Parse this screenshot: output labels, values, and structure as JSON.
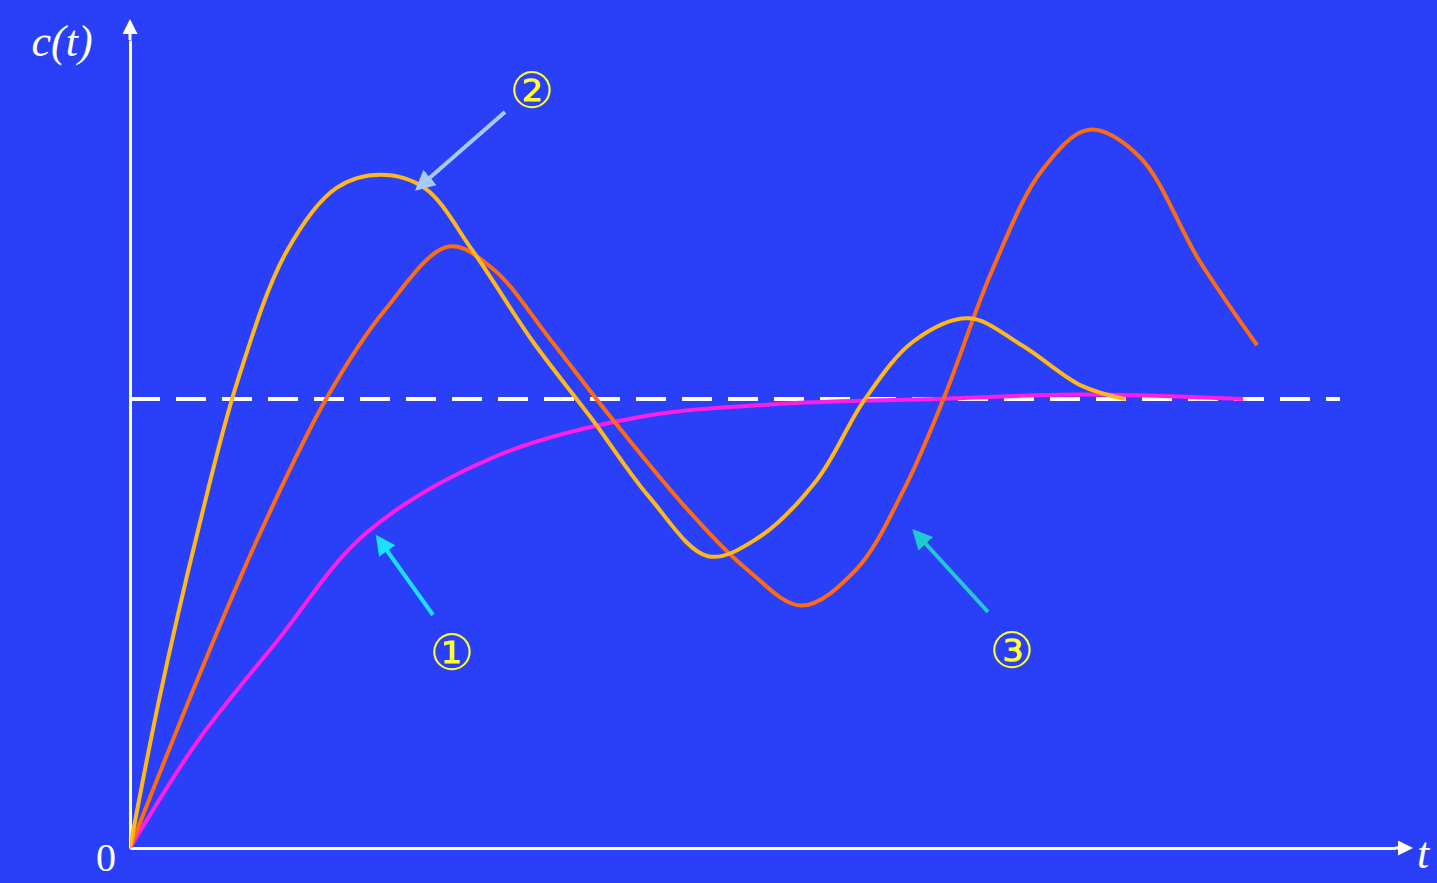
{
  "chart_data": {
    "type": "line",
    "x_label": "t",
    "y_label": "c(t)",
    "xlim": [
      0,
      10
    ],
    "ylim": [
      0,
      1.8
    ],
    "yticks": [
      0
    ],
    "tick_labels": "y",
    "grid": false,
    "reference_line": {
      "value": 1,
      "line_style": "dashed",
      "color": "#ffffff"
    },
    "series": [
      {
        "name": "①",
        "color": "#ff1ee6",
        "x": [
          0,
          0.54,
          1.16,
          1.86,
          2.87,
          4.03,
          5.19,
          6.36,
          7.52,
          8.8
        ],
        "values": [
          0,
          0.24,
          0.46,
          0.7,
          0.87,
          0.96,
          0.99,
          1.0,
          1.01,
          1.0
        ]
      },
      {
        "name": "②",
        "color": "#ffb81c",
        "x": [
          0,
          0.23,
          0.54,
          0.85,
          1.24,
          1.63,
          1.98,
          2.33,
          2.71,
          3.18,
          3.64,
          4.11,
          4.57,
          4.96,
          5.43,
          5.81,
          6.2,
          6.63,
          7.05,
          7.52,
          7.87
        ],
        "values": [
          0,
          0.33,
          0.71,
          1.04,
          1.33,
          1.47,
          1.5,
          1.47,
          1.33,
          1.13,
          0.96,
          0.78,
          0.65,
          0.69,
          0.82,
          1.0,
          1.13,
          1.18,
          1.12,
          1.03,
          1.0
        ]
      },
      {
        "name": "③",
        "color": "#ff6a13",
        "x": [
          0,
          0.54,
          1.01,
          1.55,
          2.02,
          2.52,
          2.87,
          3.33,
          3.8,
          4.42,
          4.88,
          5.31,
          5.74,
          6.12,
          6.43,
          6.82,
          7.21,
          7.58,
          7.98,
          8.45,
          8.91
        ],
        "values": [
          0,
          0.38,
          0.69,
          1.0,
          1.2,
          1.34,
          1.29,
          1.13,
          0.96,
          0.75,
          0.62,
          0.54,
          0.62,
          0.8,
          1.0,
          1.29,
          1.51,
          1.6,
          1.54,
          1.31,
          1.12
        ]
      }
    ]
  }
}
